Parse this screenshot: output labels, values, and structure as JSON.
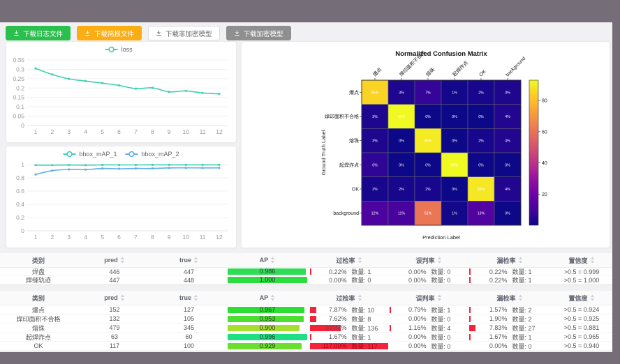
{
  "toolbar": {
    "buttons": [
      {
        "label": "下载日志文件",
        "variant": "green",
        "color": "#2bbf4e"
      },
      {
        "label": "下载简报文件",
        "variant": "orange",
        "color": "#fbad14"
      },
      {
        "label": "下载非加密模型",
        "variant": "white",
        "color": "#ffffff"
      },
      {
        "label": "下载加密模型",
        "variant": "gray",
        "color": "#8f8f8f"
      }
    ]
  },
  "colors": {
    "frame": "#756e78",
    "content_bg": "#f1f1f3",
    "teal_line": "#3ed0b0",
    "blue_line": "#62aef2",
    "red_bar": "#f5223b",
    "red_text": "#a8071a",
    "axis_text": "#999999"
  },
  "chart_data": [
    {
      "type": "line",
      "title": "",
      "legend": [
        "loss"
      ],
      "legend_position": "top",
      "x": [
        1,
        2,
        3,
        4,
        5,
        6,
        7,
        8,
        9,
        10,
        11,
        12
      ],
      "series": [
        {
          "name": "loss",
          "color": "#3ed0b0",
          "values": [
            0.305,
            0.272,
            0.249,
            0.237,
            0.226,
            0.214,
            0.197,
            0.201,
            0.18,
            0.185,
            0.174,
            0.169
          ]
        }
      ],
      "xlabel": "",
      "ylabel": "",
      "ylim": [
        0,
        0.35
      ],
      "yticks": [
        0,
        0.05,
        0.1,
        0.15,
        0.2,
        0.25,
        0.3,
        0.35
      ],
      "grid": true
    },
    {
      "type": "line",
      "title": "",
      "legend": [
        "bbox_mAP_1",
        "bbox_mAP_2"
      ],
      "legend_position": "top",
      "x": [
        1,
        2,
        3,
        4,
        5,
        6,
        7,
        8,
        9,
        10,
        11,
        12
      ],
      "series": [
        {
          "name": "bbox_mAP_1",
          "color": "#3ed0b0",
          "values": [
            0.992,
            0.992,
            0.994,
            0.992,
            0.995,
            0.995,
            0.995,
            0.996,
            0.996,
            0.996,
            0.996,
            0.996
          ]
        },
        {
          "name": "bbox_mAP_2",
          "color": "#62aef2",
          "values": [
            0.852,
            0.908,
            0.926,
            0.924,
            0.941,
            0.937,
            0.941,
            0.941,
            0.949,
            0.951,
            0.949,
            0.951
          ]
        }
      ],
      "xlabel": "",
      "ylabel": "",
      "ylim": [
        0,
        1
      ],
      "yticks": [
        0,
        0.2,
        0.4,
        0.6,
        0.8,
        1
      ],
      "grid": true
    },
    {
      "type": "heatmap",
      "title": "Normalized Confusion Matrix",
      "xlabel": "Prediction Label",
      "ylabel": "Ground Truth Label",
      "categories": [
        "爆点",
        "焊印面积不合格",
        "熔珠",
        "起焊炸点",
        "OK",
        "background"
      ],
      "values_percent": [
        [
          85,
          3,
          7,
          1,
          2,
          3
        ],
        [
          3,
          93,
          0,
          0,
          0,
          4
        ],
        [
          3,
          0,
          90,
          0,
          2,
          4
        ],
        [
          6,
          0,
          0,
          93,
          0,
          0
        ],
        [
          2,
          2,
          2,
          0,
          89,
          4
        ],
        [
          12,
          11,
          61,
          1,
          13,
          0
        ]
      ],
      "colormap": "plasma",
      "vmin": 0,
      "vmax": 93,
      "colorbar_ticks": [
        20,
        40,
        60,
        80
      ],
      "legend_position": "colorbar-right"
    }
  ],
  "tables": [
    {
      "headers": [
        {
          "label": "类别",
          "sortable": false
        },
        {
          "label": "pred",
          "sortable": true
        },
        {
          "label": "true",
          "sortable": true
        },
        {
          "label": "AP",
          "sortable": true
        },
        {
          "label": "过检率",
          "sortable": true
        },
        {
          "label": "误判率",
          "sortable": true
        },
        {
          "label": "漏检率",
          "sortable": true
        },
        {
          "label": "置信度",
          "sortable": true
        }
      ],
      "rows": [
        {
          "class": "焊盘",
          "pred": "446",
          "true": "447",
          "ap": "0.986",
          "ap_color": "#2edd55",
          "over": {
            "rate": "0.22%",
            "count": "1"
          },
          "mis": {
            "rate": "0.00%",
            "count": "0"
          },
          "miss": {
            "rate": "0.22%",
            "count": "1"
          },
          "conf": ">0.5 = 0.999"
        },
        {
          "class": "焊缝轨迹",
          "pred": "447",
          "true": "448",
          "ap": "1.000",
          "ap_color": "#2bdd3f",
          "over": {
            "rate": "0.00%",
            "count": "0"
          },
          "mis": {
            "rate": "0.00%",
            "count": "0"
          },
          "miss": {
            "rate": "0.22%",
            "count": "1"
          },
          "conf": ">0.5 = 1.000"
        }
      ]
    },
    {
      "headers": [
        {
          "label": "类别",
          "sortable": false
        },
        {
          "label": "pred",
          "sortable": true
        },
        {
          "label": "true",
          "sortable": true
        },
        {
          "label": "AP",
          "sortable": true
        },
        {
          "label": "过检率",
          "sortable": true
        },
        {
          "label": "误判率",
          "sortable": true
        },
        {
          "label": "漏检率",
          "sortable": true
        },
        {
          "label": "置信度",
          "sortable": true
        }
      ],
      "rows": [
        {
          "class": "爆点",
          "pred": "152",
          "true": "127",
          "ap": "0.967",
          "ap_color": "#2ade32",
          "over": {
            "rate": "7.87%",
            "count": "10"
          },
          "mis": {
            "rate": "0.79%",
            "count": "1"
          },
          "miss": {
            "rate": "1.57%",
            "count": "2"
          },
          "conf": ">0.5 = 0.924"
        },
        {
          "class": "焊印面积不合格",
          "pred": "132",
          "true": "105",
          "ap": "0.953",
          "ap_color": "#4cdf2f",
          "over": {
            "rate": "7.62%",
            "count": "8"
          },
          "mis": {
            "rate": "0.00%",
            "count": "0"
          },
          "miss": {
            "rate": "1.90%",
            "count": "2"
          },
          "conf": ">0.5 = 0.925"
        },
        {
          "class": "熔珠",
          "pred": "479",
          "true": "345",
          "ap": "0.900",
          "ap_color": "#a6df30",
          "over": {
            "rate": "39.42%",
            "count": "136"
          },
          "mis": {
            "rate": "1.16%",
            "count": "4"
          },
          "miss": {
            "rate": "7.83%",
            "count": "27"
          },
          "conf": ">0.5 = 0.881"
        },
        {
          "class": "起焊炸点",
          "pred": "63",
          "true": "60",
          "ap": "0.996",
          "ap_color": "#1fdf84",
          "over": {
            "rate": "1.67%",
            "count": "1"
          },
          "mis": {
            "rate": "0.00%",
            "count": "0"
          },
          "miss": {
            "rate": "1.67%",
            "count": "1"
          },
          "conf": ">0.5 = 0.965"
        },
        {
          "class": "OK",
          "pred": "117",
          "true": "100",
          "ap": "0.929",
          "ap_color": "#6cdf2e",
          "over": {
            "rate": "117.00%",
            "count": "117"
          },
          "mis": {
            "rate": "0.00%",
            "count": "0"
          },
          "miss": {
            "rate": "0.00%",
            "count": "0"
          },
          "conf": ">0.5 = 0.940"
        }
      ]
    }
  ],
  "misc": {
    "count_label": "数量: "
  }
}
